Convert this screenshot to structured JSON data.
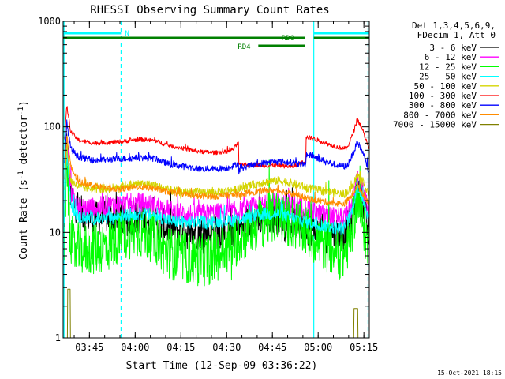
{
  "chart_data": {
    "type": "line",
    "title": "RHESSI Observing Summary Count Rates",
    "xlabel": "Start Time (12-Sep-09 03:36:22)",
    "ylabel_parts": [
      "Count Rate (s",
      "-1",
      " detector",
      "-1",
      ")"
    ],
    "y_scale": "log",
    "ylim": [
      1,
      1000
    ],
    "xlim_minutes": [
      0,
      100.4
    ],
    "x_ticks": [
      {
        "label": "03:45",
        "minute": 8.63
      },
      {
        "label": "04:00",
        "minute": 23.63
      },
      {
        "label": "04:15",
        "minute": 38.63
      },
      {
        "label": "04:30",
        "minute": 53.63
      },
      {
        "label": "04:45",
        "minute": 68.63
      },
      {
        "label": "05:00",
        "minute": 83.63
      },
      {
        "label": "05:15",
        "minute": 98.63
      }
    ],
    "y_ticks": [
      {
        "label": "1",
        "value": 1
      },
      {
        "label": "10",
        "value": 10
      },
      {
        "label": "100",
        "value": 100
      },
      {
        "label": "1000",
        "value": 1000
      }
    ],
    "legend_header": [
      "Det 1,3,4,5,6,9,",
      "FDecim 1, Att 0"
    ],
    "legend_position": "right",
    "series": [
      {
        "name": "3 - 6 keV",
        "color": "#000000",
        "noise": 0.16,
        "points": [
          [
            0.5,
            10
          ],
          [
            1.2,
            70
          ],
          [
            2.5,
            22
          ],
          [
            5,
            16
          ],
          [
            10,
            13.5
          ],
          [
            15,
            14
          ],
          [
            20,
            13
          ],
          [
            25,
            14
          ],
          [
            30,
            12.5
          ],
          [
            35,
            11
          ],
          [
            40,
            10
          ],
          [
            45,
            10
          ],
          [
            50,
            10
          ],
          [
            55,
            10.5
          ],
          [
            58,
            11
          ],
          [
            62,
            13
          ],
          [
            66,
            14
          ],
          [
            70,
            14
          ],
          [
            73,
            13
          ],
          [
            77,
            12
          ],
          [
            80,
            11
          ],
          [
            84,
            10.5
          ],
          [
            88,
            10
          ],
          [
            92,
            10
          ],
          [
            94.5,
            13
          ],
          [
            96.5,
            26
          ],
          [
            98,
            20
          ],
          [
            100.4,
            9.5
          ]
        ]
      },
      {
        "name": "6 - 12 keV",
        "color": "#ff00ff",
        "noise": 0.1,
        "points": [
          [
            0.5,
            16
          ],
          [
            1.2,
            75
          ],
          [
            2.5,
            25
          ],
          [
            5,
            17
          ],
          [
            10,
            17
          ],
          [
            15,
            18
          ],
          [
            20,
            18.5
          ],
          [
            25,
            19
          ],
          [
            30,
            18
          ],
          [
            35,
            16
          ],
          [
            40,
            15
          ],
          [
            45,
            15
          ],
          [
            50,
            15
          ],
          [
            55,
            15.5
          ],
          [
            58,
            16
          ],
          [
            62,
            17
          ],
          [
            66,
            18
          ],
          [
            70,
            19
          ],
          [
            73,
            19
          ],
          [
            76,
            18
          ],
          [
            80,
            16.5
          ],
          [
            84,
            15
          ],
          [
            88,
            14
          ],
          [
            92,
            13.5
          ],
          [
            94.5,
            17
          ],
          [
            96.5,
            32
          ],
          [
            98,
            25
          ],
          [
            100.4,
            17
          ]
        ]
      },
      {
        "name": "12 - 25 keV",
        "color": "#00ff00",
        "noise": 0.25,
        "points": [
          [
            0.5,
            8
          ],
          [
            1.2,
            58
          ],
          [
            2.2,
            10
          ],
          [
            3.5,
            7
          ],
          [
            10,
            7
          ],
          [
            15,
            7.5
          ],
          [
            18,
            9
          ],
          [
            22,
            10
          ],
          [
            26,
            10
          ],
          [
            30,
            9
          ],
          [
            33,
            7
          ],
          [
            37,
            6
          ],
          [
            43,
            5.5
          ],
          [
            47,
            5.5
          ],
          [
            50,
            6
          ],
          [
            52,
            6.5
          ],
          [
            54,
            7
          ],
          [
            58,
            9
          ],
          [
            62,
            11
          ],
          [
            66,
            13
          ],
          [
            70,
            14
          ],
          [
            73,
            13
          ],
          [
            76,
            12
          ],
          [
            80,
            10
          ],
          [
            84,
            8
          ],
          [
            88,
            7
          ],
          [
            92,
            6
          ],
          [
            94.5,
            10
          ],
          [
            96.5,
            22
          ],
          [
            98,
            14
          ],
          [
            100.4,
            6.5
          ]
        ]
      },
      {
        "name": "25 - 50 keV",
        "color": "#00ffff",
        "noise": 0.06,
        "points": [
          [
            0.5,
            14
          ],
          [
            1.2,
            68
          ],
          [
            2.5,
            18
          ],
          [
            5,
            14
          ],
          [
            10,
            13.5
          ],
          [
            15,
            13.5
          ],
          [
            20,
            14.5
          ],
          [
            25,
            15
          ],
          [
            30,
            14.5
          ],
          [
            35,
            13
          ],
          [
            40,
            12.5
          ],
          [
            45,
            12.5
          ],
          [
            50,
            12.5
          ],
          [
            55,
            13
          ],
          [
            58,
            13.5
          ],
          [
            62,
            14
          ],
          [
            66,
            15
          ],
          [
            70,
            15
          ],
          [
            74,
            14
          ],
          [
            78,
            13
          ],
          [
            82,
            12
          ],
          [
            86,
            11.5
          ],
          [
            90,
            11
          ],
          [
            92,
            11
          ],
          [
            94.5,
            15
          ],
          [
            96.5,
            28
          ],
          [
            98,
            22
          ],
          [
            100.4,
            13
          ]
        ]
      },
      {
        "name": "50 - 100 keV",
        "color": "#d4d400",
        "noise": 0.04,
        "points": [
          [
            0.5,
            25
          ],
          [
            1.2,
            70
          ],
          [
            2.5,
            31
          ],
          [
            5,
            27
          ],
          [
            10,
            26
          ],
          [
            15,
            26
          ],
          [
            20,
            28
          ],
          [
            25,
            29
          ],
          [
            30,
            28
          ],
          [
            35,
            25
          ],
          [
            40,
            24
          ],
          [
            45,
            24
          ],
          [
            50,
            24
          ],
          [
            55,
            25
          ],
          [
            58,
            26
          ],
          [
            62,
            28
          ],
          [
            66,
            30
          ],
          [
            70,
            31
          ],
          [
            73,
            30
          ],
          [
            77,
            28
          ],
          [
            80,
            26.5
          ],
          [
            84,
            25
          ],
          [
            88,
            24
          ],
          [
            92,
            23
          ],
          [
            94.5,
            26
          ],
          [
            96.5,
            35
          ],
          [
            98,
            30
          ],
          [
            100.4,
            24
          ]
        ]
      },
      {
        "name": "100 - 300 keV",
        "color": "#ff0000",
        "noise": 0.02,
        "points": [
          [
            0.5,
            75
          ],
          [
            1.2,
            160
          ],
          [
            2.5,
            90
          ],
          [
            5,
            75
          ],
          [
            10,
            70
          ],
          [
            15,
            71
          ],
          [
            20,
            73
          ],
          [
            25,
            76
          ],
          [
            30,
            74
          ],
          [
            35,
            66
          ],
          [
            40,
            62
          ],
          [
            45,
            58
          ],
          [
            50,
            57
          ],
          [
            54,
            58
          ],
          [
            56,
            62
          ],
          [
            57.5,
            72
          ],
          [
            57.6,
            45
          ],
          [
            60,
            44
          ],
          [
            65,
            43
          ],
          [
            70,
            43
          ],
          [
            75,
            42
          ],
          [
            78,
            45
          ],
          [
            79.6,
            48
          ],
          [
            79.7,
            80
          ],
          [
            82,
            78
          ],
          [
            86,
            70
          ],
          [
            90,
            64
          ],
          [
            93,
            62
          ],
          [
            95,
            85
          ],
          [
            96.5,
            118
          ],
          [
            98.2,
            95
          ],
          [
            100.4,
            60
          ]
        ]
      },
      {
        "name": "300 - 800 keV",
        "color": "#0000ff",
        "noise": 0.03,
        "points": [
          [
            0.5,
            45
          ],
          [
            1.2,
            110
          ],
          [
            2.5,
            62
          ],
          [
            5,
            52
          ],
          [
            10,
            48
          ],
          [
            15,
            49
          ],
          [
            20,
            50
          ],
          [
            25,
            51
          ],
          [
            30,
            50
          ],
          [
            35,
            44
          ],
          [
            40,
            42
          ],
          [
            45,
            40
          ],
          [
            50,
            40
          ],
          [
            54,
            41
          ],
          [
            56,
            43
          ],
          [
            57.5,
            45
          ],
          [
            57.6,
            38
          ],
          [
            60,
            42
          ],
          [
            65,
            45
          ],
          [
            70,
            47
          ],
          [
            75,
            46
          ],
          [
            78,
            44
          ],
          [
            79.6,
            43
          ],
          [
            79.7,
            55
          ],
          [
            82,
            53
          ],
          [
            86,
            47
          ],
          [
            90,
            43
          ],
          [
            93,
            42
          ],
          [
            95,
            55
          ],
          [
            96.5,
            72
          ],
          [
            98.2,
            58
          ],
          [
            100.4,
            37
          ]
        ]
      },
      {
        "name": "800 - 7000 keV",
        "color": "#ff8c00",
        "noise": 0.03,
        "points": [
          [
            0.5,
            30
          ],
          [
            1.2,
            85
          ],
          [
            2.5,
            42
          ],
          [
            5,
            30
          ],
          [
            10,
            28
          ],
          [
            15,
            26
          ],
          [
            20,
            26
          ],
          [
            25,
            27
          ],
          [
            30,
            26
          ],
          [
            35,
            24
          ],
          [
            40,
            23
          ],
          [
            45,
            22
          ],
          [
            50,
            22
          ],
          [
            55,
            22.5
          ],
          [
            58,
            23
          ],
          [
            62,
            24
          ],
          [
            66,
            25
          ],
          [
            70,
            25
          ],
          [
            73,
            24
          ],
          [
            77,
            22.5
          ],
          [
            80,
            21
          ],
          [
            84,
            20
          ],
          [
            88,
            19
          ],
          [
            92,
            18.5
          ],
          [
            94.5,
            22
          ],
          [
            96.5,
            28
          ],
          [
            98,
            24
          ],
          [
            100.4,
            19
          ]
        ]
      },
      {
        "name": "7000 - 15000 keV",
        "color": "#808000",
        "noise": 0,
        "points": [
          [
            1.4,
            1
          ],
          [
            1.5,
            2.9
          ],
          [
            2.3,
            2.9
          ],
          [
            2.4,
            1
          ],
          [
            95.3,
            1
          ],
          [
            95.4,
            1.9
          ],
          [
            96.6,
            1.9
          ],
          [
            96.7,
            1
          ]
        ]
      }
    ],
    "flags": [
      {
        "label": "N",
        "color": "#00ffff",
        "segments": [
          [
            0,
            19
          ],
          [
            82.2,
            100.4
          ]
        ],
        "row": 1
      },
      {
        "label": "RD0",
        "color": "#008000",
        "segments": [
          [
            0,
            100.4
          ]
        ],
        "gap": [
          79.4,
          82.2
        ],
        "row": 2
      },
      {
        "label": "RD4",
        "color": "#008000",
        "segments": [
          [
            64,
            79.4
          ]
        ],
        "row": 3
      }
    ],
    "night_markers": [
      {
        "minute": 0.3,
        "style": "solid"
      },
      {
        "minute": 19,
        "style": "dashed"
      },
      {
        "minute": 82.2,
        "style": "solid"
      },
      {
        "minute": 100,
        "style": "dashed"
      }
    ],
    "footer_date": "15-Oct-2021 18:15"
  }
}
